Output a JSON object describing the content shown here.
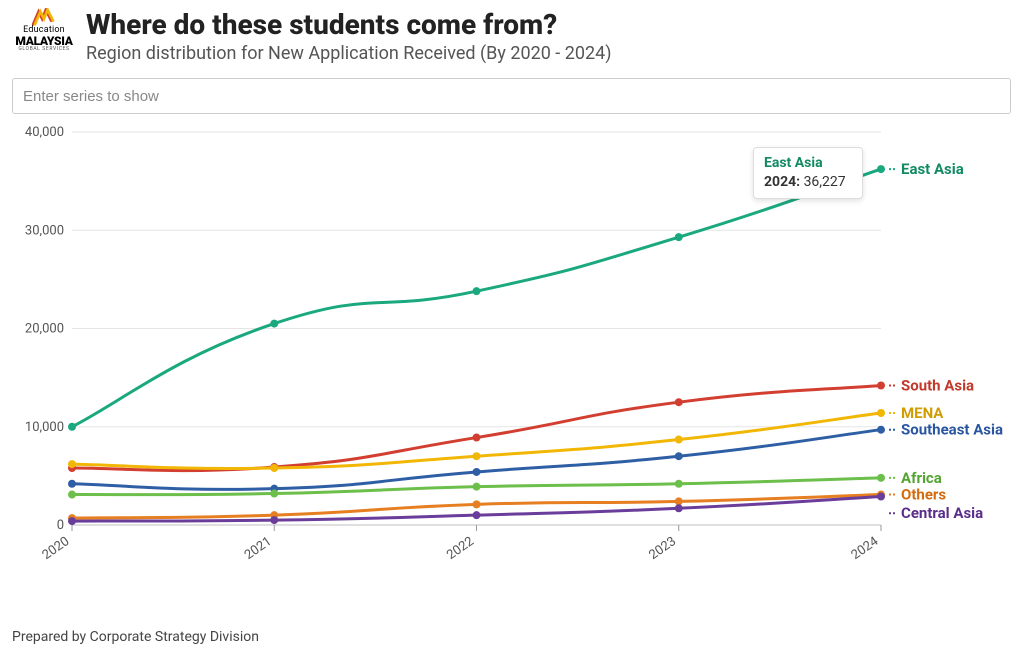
{
  "header": {
    "title": "Where do these students come from?",
    "subtitle": "Region distribution for New Application Received (By 2020 - 2024)",
    "logo_line1": "Education",
    "logo_line2": "MALAYSIA",
    "logo_line3": "GLOBAL SERVICES"
  },
  "filter": {
    "placeholder": "Enter series to show"
  },
  "chart": {
    "type": "line",
    "categories": [
      "2020",
      "2021",
      "2022",
      "2023",
      "2024"
    ],
    "ylim": [
      0,
      40000
    ],
    "ytick_step": 10000,
    "ytick_labels": [
      "0",
      "10,000",
      "20,000",
      "30,000",
      "40,000"
    ],
    "background_color": "#ffffff",
    "grid_color": "#e5e5e5",
    "axis_color": "#bfbfbf",
    "tick_color": "#999999",
    "line_width": 3,
    "marker_radius": 4,
    "label_fontsize": 15,
    "tick_fontsize": 13,
    "xtick_rotation": -35,
    "series": [
      {
        "name": "East Asia",
        "color": "#1aa87e",
        "label_color": "#128a63",
        "values": [
          10000,
          20500,
          23800,
          29300,
          36227
        ]
      },
      {
        "name": "South Asia",
        "color": "#d23f31",
        "label_color": "#c1392b",
        "values": [
          5800,
          5900,
          8900,
          12500,
          14200
        ]
      },
      {
        "name": "MENA",
        "color": "#f2b705",
        "label_color": "#d19c00",
        "values": [
          6200,
          5800,
          7000,
          8700,
          11400
        ]
      },
      {
        "name": "Southeast Asia",
        "color": "#2e5fa5",
        "label_color": "#2a55a0",
        "values": [
          4200,
          3700,
          5400,
          7000,
          9700
        ]
      },
      {
        "name": "Africa",
        "color": "#6cbf4a",
        "label_color": "#53a532",
        "values": [
          3100,
          3200,
          3900,
          4200,
          4800
        ]
      },
      {
        "name": "Others",
        "color": "#e67e22",
        "label_color": "#d46c0f",
        "values": [
          700,
          1000,
          2100,
          2400,
          3100
        ]
      },
      {
        "name": "Central Asia",
        "color": "#6a3d9a",
        "label_color": "#5b2d8a",
        "values": [
          400,
          500,
          1000,
          1700,
          2900
        ]
      }
    ],
    "label_y_overrides": {
      "Central Asia": 1200
    }
  },
  "tooltip": {
    "series": "East Asia",
    "year": "2024:",
    "value": "36,227",
    "for_series_index": 0,
    "for_point_index": 4,
    "series_color": "#128a63"
  },
  "footer": {
    "text": "Prepared by Corporate Strategy Division"
  }
}
